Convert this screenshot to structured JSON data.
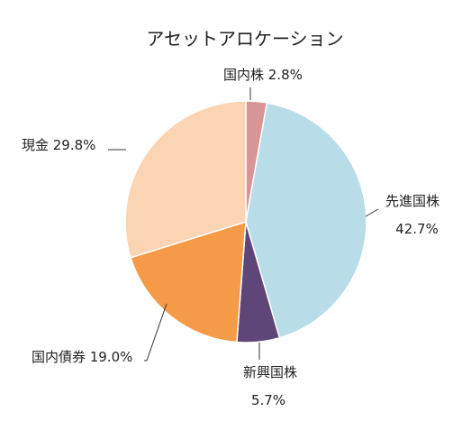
{
  "chart_data": {
    "type": "pie",
    "title": "アセットアロケーション",
    "slices": [
      {
        "name": "国内株",
        "value": 2.8,
        "label": "国内株 2.8%",
        "color": "#d99595"
      },
      {
        "name": "先進国株",
        "value": 42.7,
        "label": "先進国株\n42.7%",
        "color": "#b8dde8"
      },
      {
        "name": "新興国株",
        "value": 5.7,
        "label": "新興国株\n5.7%",
        "color": "#5e4778"
      },
      {
        "name": "国内債券",
        "value": 19.0,
        "label": "国内債券 19.0%",
        "color": "#f59a46"
      },
      {
        "name": "現金",
        "value": 29.8,
        "label": "現金 29.8%",
        "color": "#fbd4b4"
      }
    ],
    "start_angle": "top",
    "direction": "clockwise"
  }
}
